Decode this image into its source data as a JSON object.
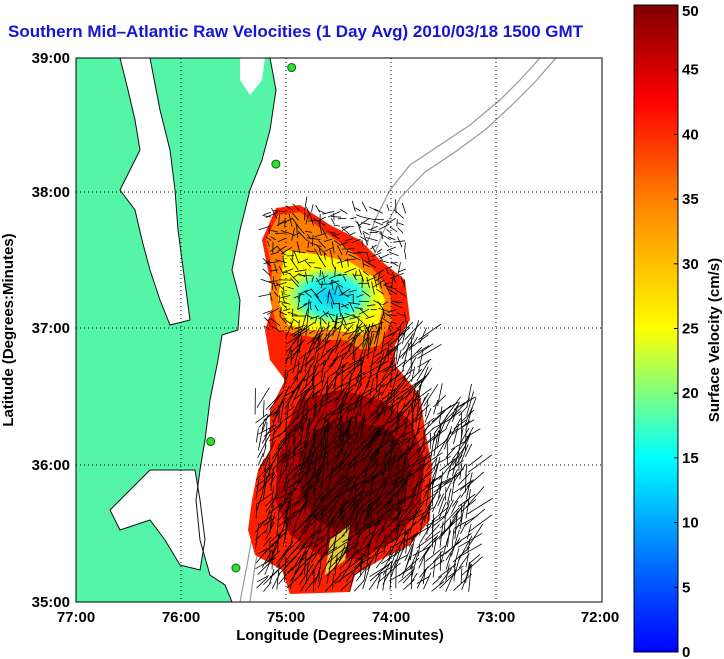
{
  "title": "Southern Mid–Atlantic Raw Velocities (1 Day Avg) 2010/03/18 1500 GMT",
  "map": {
    "xlabel": "Longitude (Degrees:Minutes)",
    "ylabel": "Latitude (Degrees:Minutes)",
    "x_ticks": [
      "77:00",
      "76:00",
      "75:00",
      "74:00",
      "73:00",
      "72:00"
    ],
    "y_ticks": [
      "39:00",
      "38:00",
      "37:00",
      "36:00",
      "35:00"
    ],
    "lon_range": [
      -77,
      -72
    ],
    "lat_range": [
      35,
      39
    ],
    "land_color": "#55f5a8",
    "grid": "dotted"
  },
  "colorbar": {
    "label": "Surface Velocity (cm/s)",
    "ticks": [
      "0",
      "5",
      "10",
      "15",
      "20",
      "25",
      "30",
      "35",
      "40",
      "45",
      "50"
    ],
    "range": [
      0,
      50
    ],
    "colormap": "jet"
  },
  "stations": [
    {
      "lon": -74.95,
      "lat": 38.93
    },
    {
      "lon": -75.1,
      "lat": 38.22
    },
    {
      "lon": -75.72,
      "lat": 36.18
    },
    {
      "lon": -75.48,
      "lat": 35.25
    }
  ]
}
